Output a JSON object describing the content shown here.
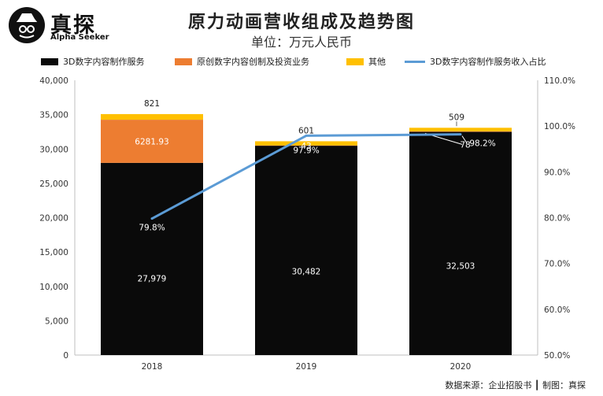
{
  "logo": {
    "name_cn": "真探",
    "name_en": "Alpha Seeker"
  },
  "title": "原力动画营收组成及趋势图",
  "subtitle": "单位：万元人民币",
  "legend": [
    {
      "label": "3D数字内容制作服务",
      "color": "#0a0a0a",
      "kind": "bar"
    },
    {
      "label": "原创数字内容创制及投资业务",
      "color": "#ed7d31",
      "kind": "bar"
    },
    {
      "label": "其他",
      "color": "#ffc000",
      "kind": "bar"
    },
    {
      "label": "3D数字内容制作服务收入占比",
      "color": "#5b9bd5",
      "kind": "line"
    }
  ],
  "footer": "数据来源：企业招股书 ┃ 制图：真探",
  "chart_data": {
    "type": "bar",
    "stacked": true,
    "categories": [
      "2018",
      "2019",
      "2020"
    ],
    "series": [
      {
        "name": "3D数字内容制作服务",
        "values": [
          27979,
          30482,
          32503
        ],
        "labels": [
          "27,979",
          "30,482",
          "32,503"
        ],
        "color": "#0a0a0a"
      },
      {
        "name": "原创数字内容创制及投资业务",
        "values": [
          6281.93,
          43,
          78
        ],
        "labels": [
          "6281.93",
          "43",
          "78"
        ],
        "color": "#ed7d31"
      },
      {
        "name": "其他",
        "values": [
          821,
          601,
          509
        ],
        "labels": [
          "821",
          "601",
          "509"
        ],
        "color": "#ffc000"
      }
    ],
    "line_series": {
      "name": "3D数字内容制作服务收入占比",
      "axis": "right",
      "values": [
        79.8,
        97.9,
        98.2
      ],
      "labels": [
        "79.8%",
        "97.9%",
        "98.2%"
      ],
      "color": "#5b9bd5"
    },
    "y_left": {
      "min": 0,
      "max": 40000,
      "ticks": [
        "0",
        "5,000",
        "10,000",
        "15,000",
        "20,000",
        "25,000",
        "30,000",
        "35,000",
        "40,000"
      ]
    },
    "y_right": {
      "min": 50,
      "max": 110,
      "ticks": [
        "50.0%",
        "60.0%",
        "70.0%",
        "80.0%",
        "90.0%",
        "100.0%",
        "110.0%"
      ]
    },
    "grid": false,
    "legend_position": "top"
  }
}
